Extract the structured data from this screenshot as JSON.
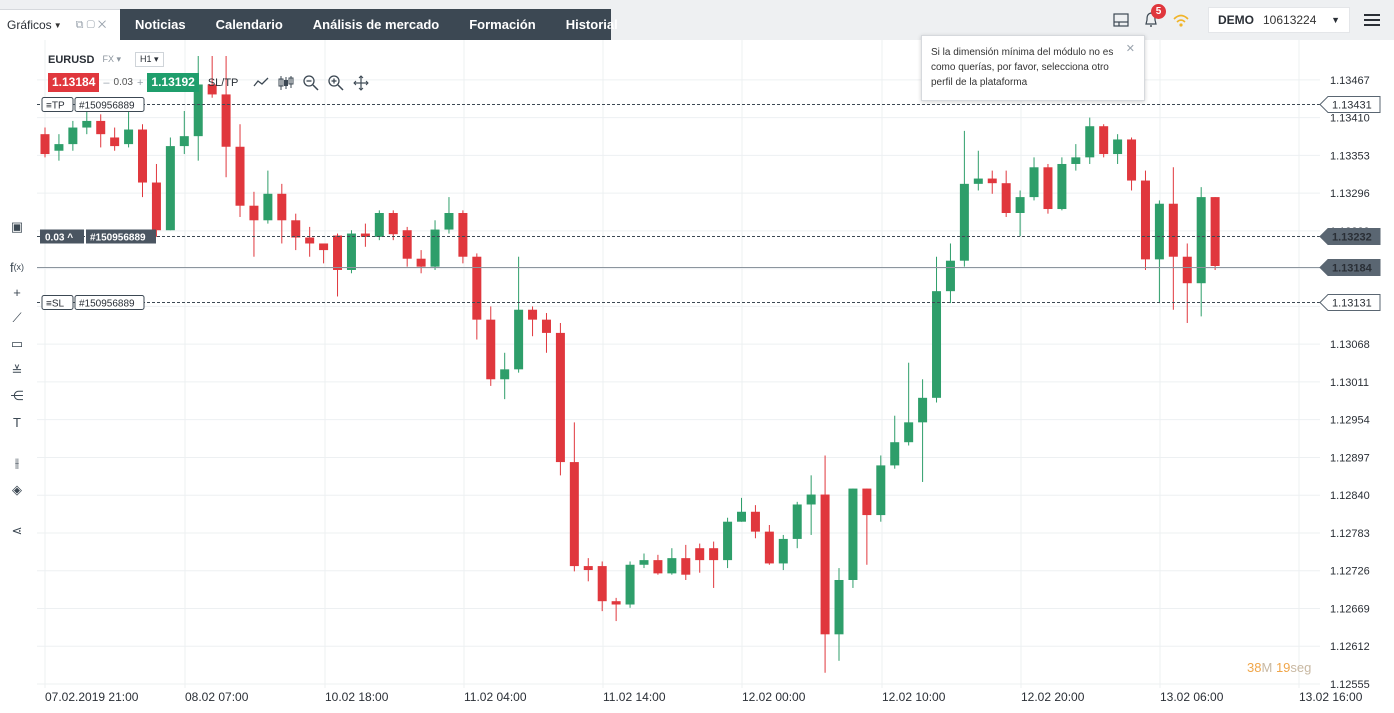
{
  "app": {
    "charts_tab": "Gráficos",
    "nav": [
      "Noticias",
      "Calendario",
      "Análisis de mercado",
      "Formación",
      "Historial"
    ],
    "notifications": "5",
    "account_type": "DEMO",
    "account_number": "10613224"
  },
  "symbol": {
    "name": "EURUSD",
    "type": "FX",
    "timeframe": "H1",
    "sell": "1.13184",
    "spread": "0.03",
    "buy": "1.13192",
    "sltp_label": "SL/TP"
  },
  "tooltip": {
    "text": "Si la dimensión mínima del módulo no es como querías, por favor, selecciona otro perfil de la plataforma"
  },
  "countdown": {
    "minutes": "38",
    "min_unit": "M",
    "seconds": "19",
    "sec_unit": "seg"
  },
  "colors": {
    "up": "#2e9e6a",
    "down": "#e0373d",
    "nav_bg": "#3c4853",
    "tooltip_accent": "#f0a64a"
  },
  "chart_data": {
    "type": "candlestick",
    "symbol": "EURUSD",
    "timeframe": "H1",
    "y_ticks": [
      "1.13467",
      "1.13410",
      "1.13353",
      "1.13296",
      "1.13239",
      "1.13182",
      "1.13125",
      "1.13068",
      "1.13011",
      "1.12954",
      "1.12897",
      "1.12840",
      "1.12783",
      "1.12726",
      "1.12669",
      "1.12612",
      "1.12555"
    ],
    "x_ticks": [
      "07.02.2019 21:00",
      "08.02 07:00",
      "10.02 18:00",
      "11.02 04:00",
      "11.02 14:00",
      "12.02 00:00",
      "12.02 10:00",
      "12.02 20:00",
      "13.02 06:00",
      "13.02 16:00"
    ],
    "ylim": [
      1.12555,
      1.13503
    ],
    "lines": [
      {
        "name": "TP",
        "order": "#150956889",
        "price": "1.13431"
      },
      {
        "name": "Position",
        "order": "#150956889",
        "profit": "0.03",
        "price": "1.13232"
      },
      {
        "name": "Current",
        "price": "1.13184"
      },
      {
        "name": "SL",
        "order": "#150956889",
        "price": "1.13131"
      }
    ],
    "candles": [
      [
        1.13385,
        1.13355,
        1.13395,
        1.1335
      ],
      [
        1.1336,
        1.1337,
        1.13385,
        1.13345
      ],
      [
        1.1337,
        1.13395,
        1.13405,
        1.1336
      ],
      [
        1.13395,
        1.13405,
        1.13425,
        1.13385
      ],
      [
        1.13405,
        1.13385,
        1.13415,
        1.13365
      ],
      [
        1.1338,
        1.13367,
        1.13395,
        1.1336
      ],
      [
        1.1337,
        1.13392,
        1.13425,
        1.13365
      ],
      [
        1.13392,
        1.13312,
        1.134,
        1.1329
      ],
      [
        1.13312,
        1.1324,
        1.1334,
        1.1323
      ],
      [
        1.1324,
        1.13367,
        1.1338,
        1.1324
      ],
      [
        1.13367,
        1.13382,
        1.1342,
        1.13355
      ],
      [
        1.13382,
        1.1346,
        1.13503,
        1.13345
      ],
      [
        1.1346,
        1.13445,
        1.13503,
        1.1344
      ],
      [
        1.13445,
        1.13366,
        1.13503,
        1.1332
      ],
      [
        1.13366,
        1.13277,
        1.134,
        1.1326
      ],
      [
        1.13277,
        1.13255,
        1.13298,
        1.132
      ],
      [
        1.13255,
        1.13295,
        1.1333,
        1.1325
      ],
      [
        1.13295,
        1.13255,
        1.1331,
        1.1322
      ],
      [
        1.13255,
        1.13229,
        1.13265,
        1.1321
      ],
      [
        1.13229,
        1.1322,
        1.13245,
        1.132
      ],
      [
        1.1322,
        1.1321,
        1.13215,
        1.1319
      ],
      [
        1.13232,
        1.1318,
        1.13235,
        1.1314
      ],
      [
        1.1318,
        1.13235,
        1.1324,
        1.13175
      ],
      [
        1.13235,
        1.1323,
        1.1325,
        1.13215
      ],
      [
        1.1323,
        1.13266,
        1.1327,
        1.13225
      ],
      [
        1.13266,
        1.13234,
        1.1327,
        1.13225
      ],
      [
        1.1324,
        1.13197,
        1.13245,
        1.13185
      ],
      [
        1.13197,
        1.13185,
        1.1321,
        1.13175
      ],
      [
        1.13185,
        1.13241,
        1.13255,
        1.1318
      ],
      [
        1.13241,
        1.13266,
        1.1329,
        1.13235
      ],
      [
        1.13266,
        1.132,
        1.1327,
        1.1319
      ],
      [
        1.132,
        1.13105,
        1.13205,
        1.13075
      ],
      [
        1.13105,
        1.13015,
        1.13125,
        1.13005
      ],
      [
        1.13015,
        1.1303,
        1.13055,
        1.12985
      ],
      [
        1.1303,
        1.1312,
        1.132,
        1.13025
      ],
      [
        1.1312,
        1.13105,
        1.13125,
        1.1308
      ],
      [
        1.13105,
        1.13085,
        1.13115,
        1.13055
      ],
      [
        1.13085,
        1.1289,
        1.131,
        1.1287
      ],
      [
        1.1289,
        1.12733,
        1.1295,
        1.12725
      ],
      [
        1.12733,
        1.12727,
        1.12745,
        1.1271
      ],
      [
        1.12733,
        1.1268,
        1.1274,
        1.12665
      ],
      [
        1.1268,
        1.12675,
        1.12685,
        1.1265
      ],
      [
        1.12675,
        1.12735,
        1.1274,
        1.1267
      ],
      [
        1.12735,
        1.12742,
        1.12752,
        1.1273
      ],
      [
        1.12742,
        1.12722,
        1.1275,
        1.1272
      ],
      [
        1.12722,
        1.12745,
        1.1276,
        1.1272
      ],
      [
        1.12745,
        1.1272,
        1.12765,
        1.12712
      ],
      [
        1.1276,
        1.12742,
        1.12767,
        1.12723
      ],
      [
        1.1276,
        1.12742,
        1.1277,
        1.127
      ],
      [
        1.12742,
        1.128,
        1.12806,
        1.1273
      ],
      [
        1.128,
        1.12815,
        1.12836,
        1.128
      ],
      [
        1.12815,
        1.12785,
        1.12825,
        1.12775
      ],
      [
        1.12785,
        1.12737,
        1.12795,
        1.12735
      ],
      [
        1.12737,
        1.12774,
        1.1278,
        1.12727
      ],
      [
        1.12774,
        1.12826,
        1.1283,
        1.1276
      ],
      [
        1.12826,
        1.12841,
        1.1287,
        1.1278
      ],
      [
        1.12841,
        1.1263,
        1.129,
        1.12572
      ],
      [
        1.1263,
        1.12712,
        1.1273,
        1.1259
      ],
      [
        1.12712,
        1.1285,
        1.1285,
        1.127
      ],
      [
        1.1285,
        1.1281,
        1.1285,
        1.12735
      ],
      [
        1.1281,
        1.12885,
        1.129,
        1.128
      ],
      [
        1.12885,
        1.1292,
        1.1296,
        1.1288
      ],
      [
        1.1292,
        1.1295,
        1.1304,
        1.12915
      ],
      [
        1.1295,
        1.12987,
        1.13015,
        1.1286
      ],
      [
        1.12987,
        1.13148,
        1.132,
        1.1298
      ],
      [
        1.13148,
        1.13194,
        1.1322,
        1.1313
      ],
      [
        1.13194,
        1.1331,
        1.1339,
        1.13185
      ],
      [
        1.1331,
        1.13318,
        1.1336,
        1.133
      ],
      [
        1.13318,
        1.13311,
        1.1333,
        1.13295
      ],
      [
        1.13311,
        1.13266,
        1.1333,
        1.1326
      ],
      [
        1.13266,
        1.1329,
        1.133,
        1.13231
      ],
      [
        1.1329,
        1.13335,
        1.1335,
        1.13285
      ],
      [
        1.13335,
        1.13272,
        1.1334,
        1.13265
      ],
      [
        1.13272,
        1.1334,
        1.1335,
        1.1327
      ],
      [
        1.1334,
        1.1335,
        1.1337,
        1.1333
      ],
      [
        1.1335,
        1.13397,
        1.1341,
        1.1334
      ],
      [
        1.13397,
        1.13355,
        1.134,
        1.1335
      ],
      [
        1.13355,
        1.13377,
        1.13385,
        1.1334
      ],
      [
        1.13377,
        1.13315,
        1.1338,
        1.133
      ],
      [
        1.13315,
        1.13196,
        1.1333,
        1.1318
      ],
      [
        1.13196,
        1.1328,
        1.13285,
        1.1313
      ],
      [
        1.1328,
        1.132,
        1.13335,
        1.1312
      ],
      [
        1.132,
        1.1316,
        1.1322,
        1.131
      ],
      [
        1.1316,
        1.1329,
        1.13305,
        1.1311
      ],
      [
        1.1329,
        1.13186,
        1.1329,
        1.1318
      ]
    ]
  }
}
